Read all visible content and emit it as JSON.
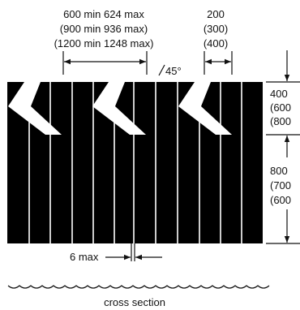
{
  "spacing_dimension": {
    "line1": "600 min  624 max",
    "line2": "(900 min  936 max)",
    "line3": "(1200 min  1248 max)"
  },
  "width_dimension": {
    "line1": "200",
    "line2": "(300)",
    "line3": "(400)"
  },
  "chevron_height": {
    "line1": "400",
    "line2": "(600",
    "line3": "(800"
  },
  "lower_height": {
    "line1": "800",
    "line2": "(700",
    "line3": "(600"
  },
  "angle_label": "45°",
  "gap_label": "6 max",
  "section_label": "cross section",
  "colors": {
    "fill": "#000000",
    "chevron": "#ffffff",
    "line": "#111111",
    "background": "#ffffff"
  }
}
